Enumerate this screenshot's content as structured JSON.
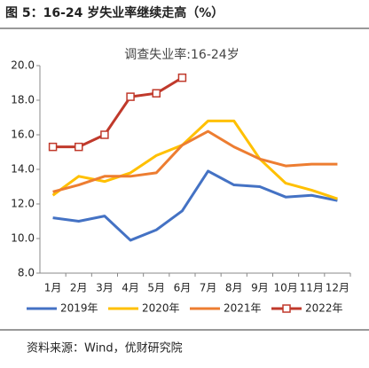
{
  "header": "图 5：16-24 岁失业率继续走高（%）",
  "source": "资料来源：Wind，优财研究院",
  "chart_data": {
    "type": "line",
    "title": "调查失业率:16-24岁",
    "categories": [
      "1月",
      "2月",
      "3月",
      "4月",
      "5月",
      "6月",
      "7月",
      "8月",
      "9月",
      "10月",
      "11月",
      "12月"
    ],
    "series": [
      {
        "name": "2019年",
        "color": "#4472c4",
        "values": [
          11.2,
          11.0,
          11.3,
          9.9,
          10.5,
          11.6,
          13.9,
          13.1,
          13.0,
          12.4,
          12.5,
          12.2
        ]
      },
      {
        "name": "2020年",
        "color": "#ffc000",
        "values": [
          12.5,
          13.6,
          13.3,
          13.8,
          14.8,
          15.4,
          16.8,
          16.8,
          14.6,
          13.2,
          12.8,
          12.3
        ]
      },
      {
        "name": "2021年",
        "color": "#ed7d31",
        "values": [
          12.7,
          13.1,
          13.6,
          13.6,
          13.8,
          15.4,
          16.2,
          15.3,
          14.6,
          14.2,
          14.3,
          14.3
        ]
      },
      {
        "name": "2022年",
        "color": "#c0392b",
        "marker": "square",
        "values": [
          15.3,
          15.3,
          16.0,
          18.2,
          18.4,
          19.3,
          null,
          null,
          null,
          null,
          null,
          null
        ]
      }
    ],
    "ylim": [
      8,
      20
    ],
    "yticks": [
      {
        "value": 8,
        "label": "8.0"
      },
      {
        "value": 10,
        "label": "10.0"
      },
      {
        "value": 12,
        "label": "12.0"
      },
      {
        "value": 14,
        "label": "14.0"
      },
      {
        "value": 16,
        "label": "16.0"
      },
      {
        "value": 18,
        "label": "18.0"
      },
      {
        "value": 20,
        "label": "20.0"
      }
    ],
    "grid": false,
    "legend": "bottom"
  }
}
